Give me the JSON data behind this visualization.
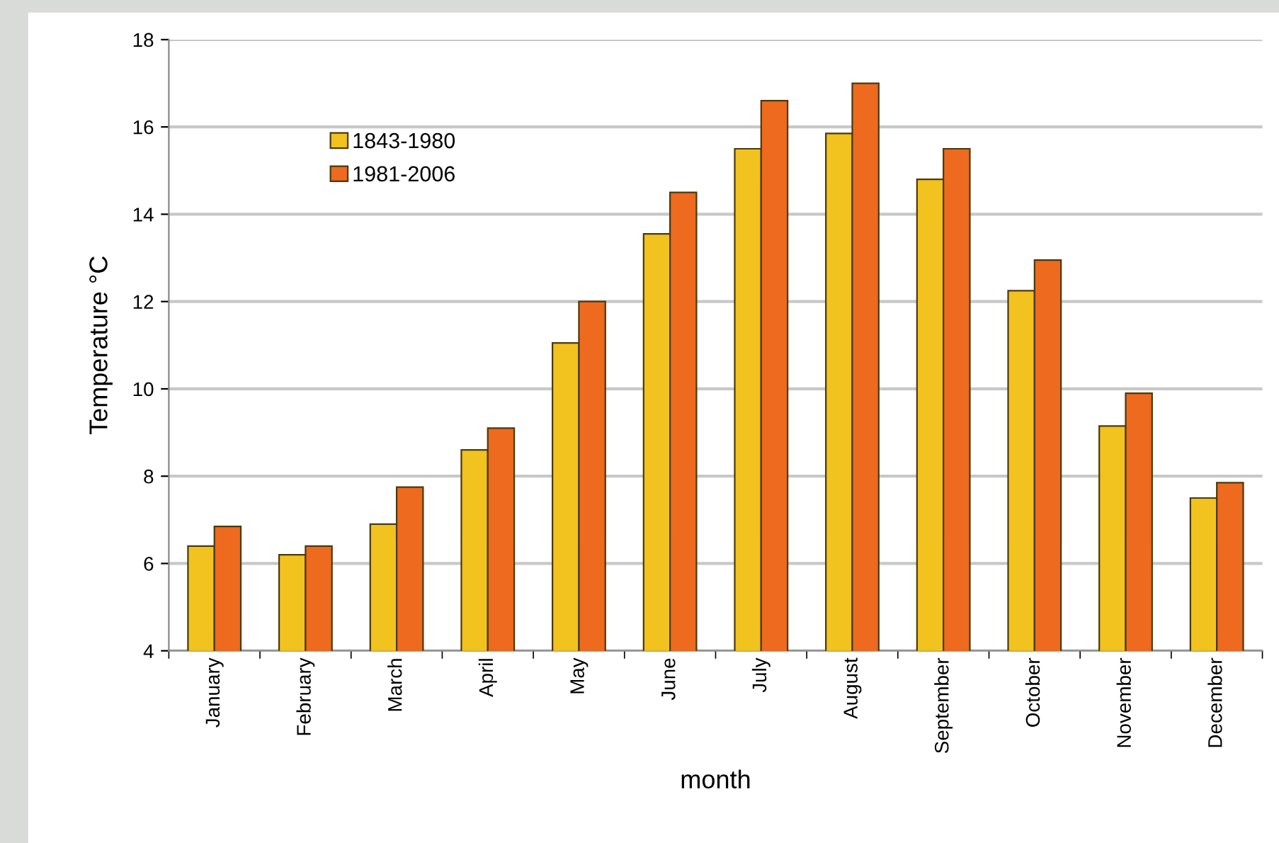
{
  "chart_data": {
    "type": "bar",
    "xlabel": "month",
    "ylabel": "Temperature °C",
    "categories": [
      "January",
      "February",
      "March",
      "April",
      "May",
      "June",
      "July",
      "August",
      "September",
      "October",
      "November",
      "December"
    ],
    "series": [
      {
        "name": "1843-1980",
        "color": "#f2c21e",
        "values": [
          6.4,
          6.2,
          6.9,
          8.6,
          11.05,
          13.55,
          15.5,
          15.85,
          14.8,
          12.25,
          9.15,
          7.5
        ]
      },
      {
        "name": "1981-2006",
        "color": "#ee6a1e",
        "values": [
          6.85,
          6.4,
          7.75,
          9.1,
          12.0,
          14.5,
          16.6,
          17.0,
          15.5,
          12.95,
          9.9,
          7.85
        ]
      }
    ],
    "ylim": [
      4,
      18
    ],
    "yticks": [
      4,
      6,
      8,
      10,
      12,
      14,
      16,
      18
    ],
    "grid": "y",
    "legend": "top left"
  }
}
